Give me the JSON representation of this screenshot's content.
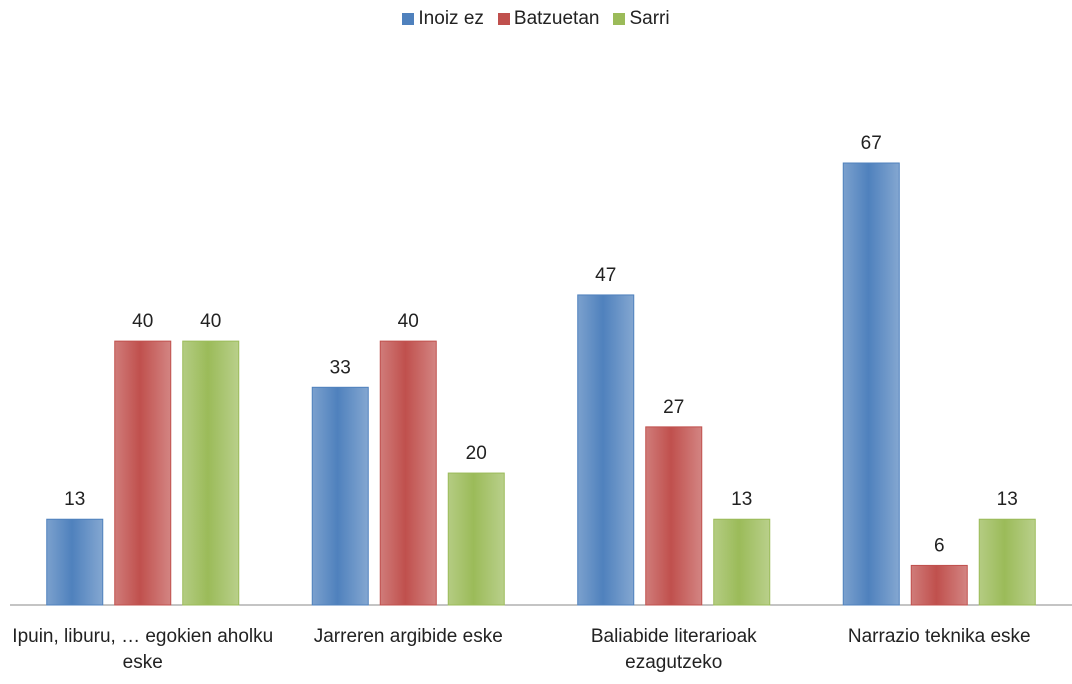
{
  "chart_data": {
    "type": "bar",
    "categories": [
      "Ipuin, liburu, … egokien aholku eske",
      "Jarreren argibide eske",
      "Baliabide literarioak ezagutzeko",
      "Narrazio teknika eske"
    ],
    "series": [
      {
        "name": "Inoiz ez",
        "color": "#4f81bd",
        "values": [
          13,
          33,
          47,
          67
        ]
      },
      {
        "name": "Batzuetan",
        "color": "#c0504d",
        "values": [
          40,
          40,
          27,
          6
        ]
      },
      {
        "name": "Sarri",
        "color": "#9bbb59",
        "values": [
          40,
          20,
          13,
          13
        ]
      }
    ],
    "legend": "top"
  }
}
